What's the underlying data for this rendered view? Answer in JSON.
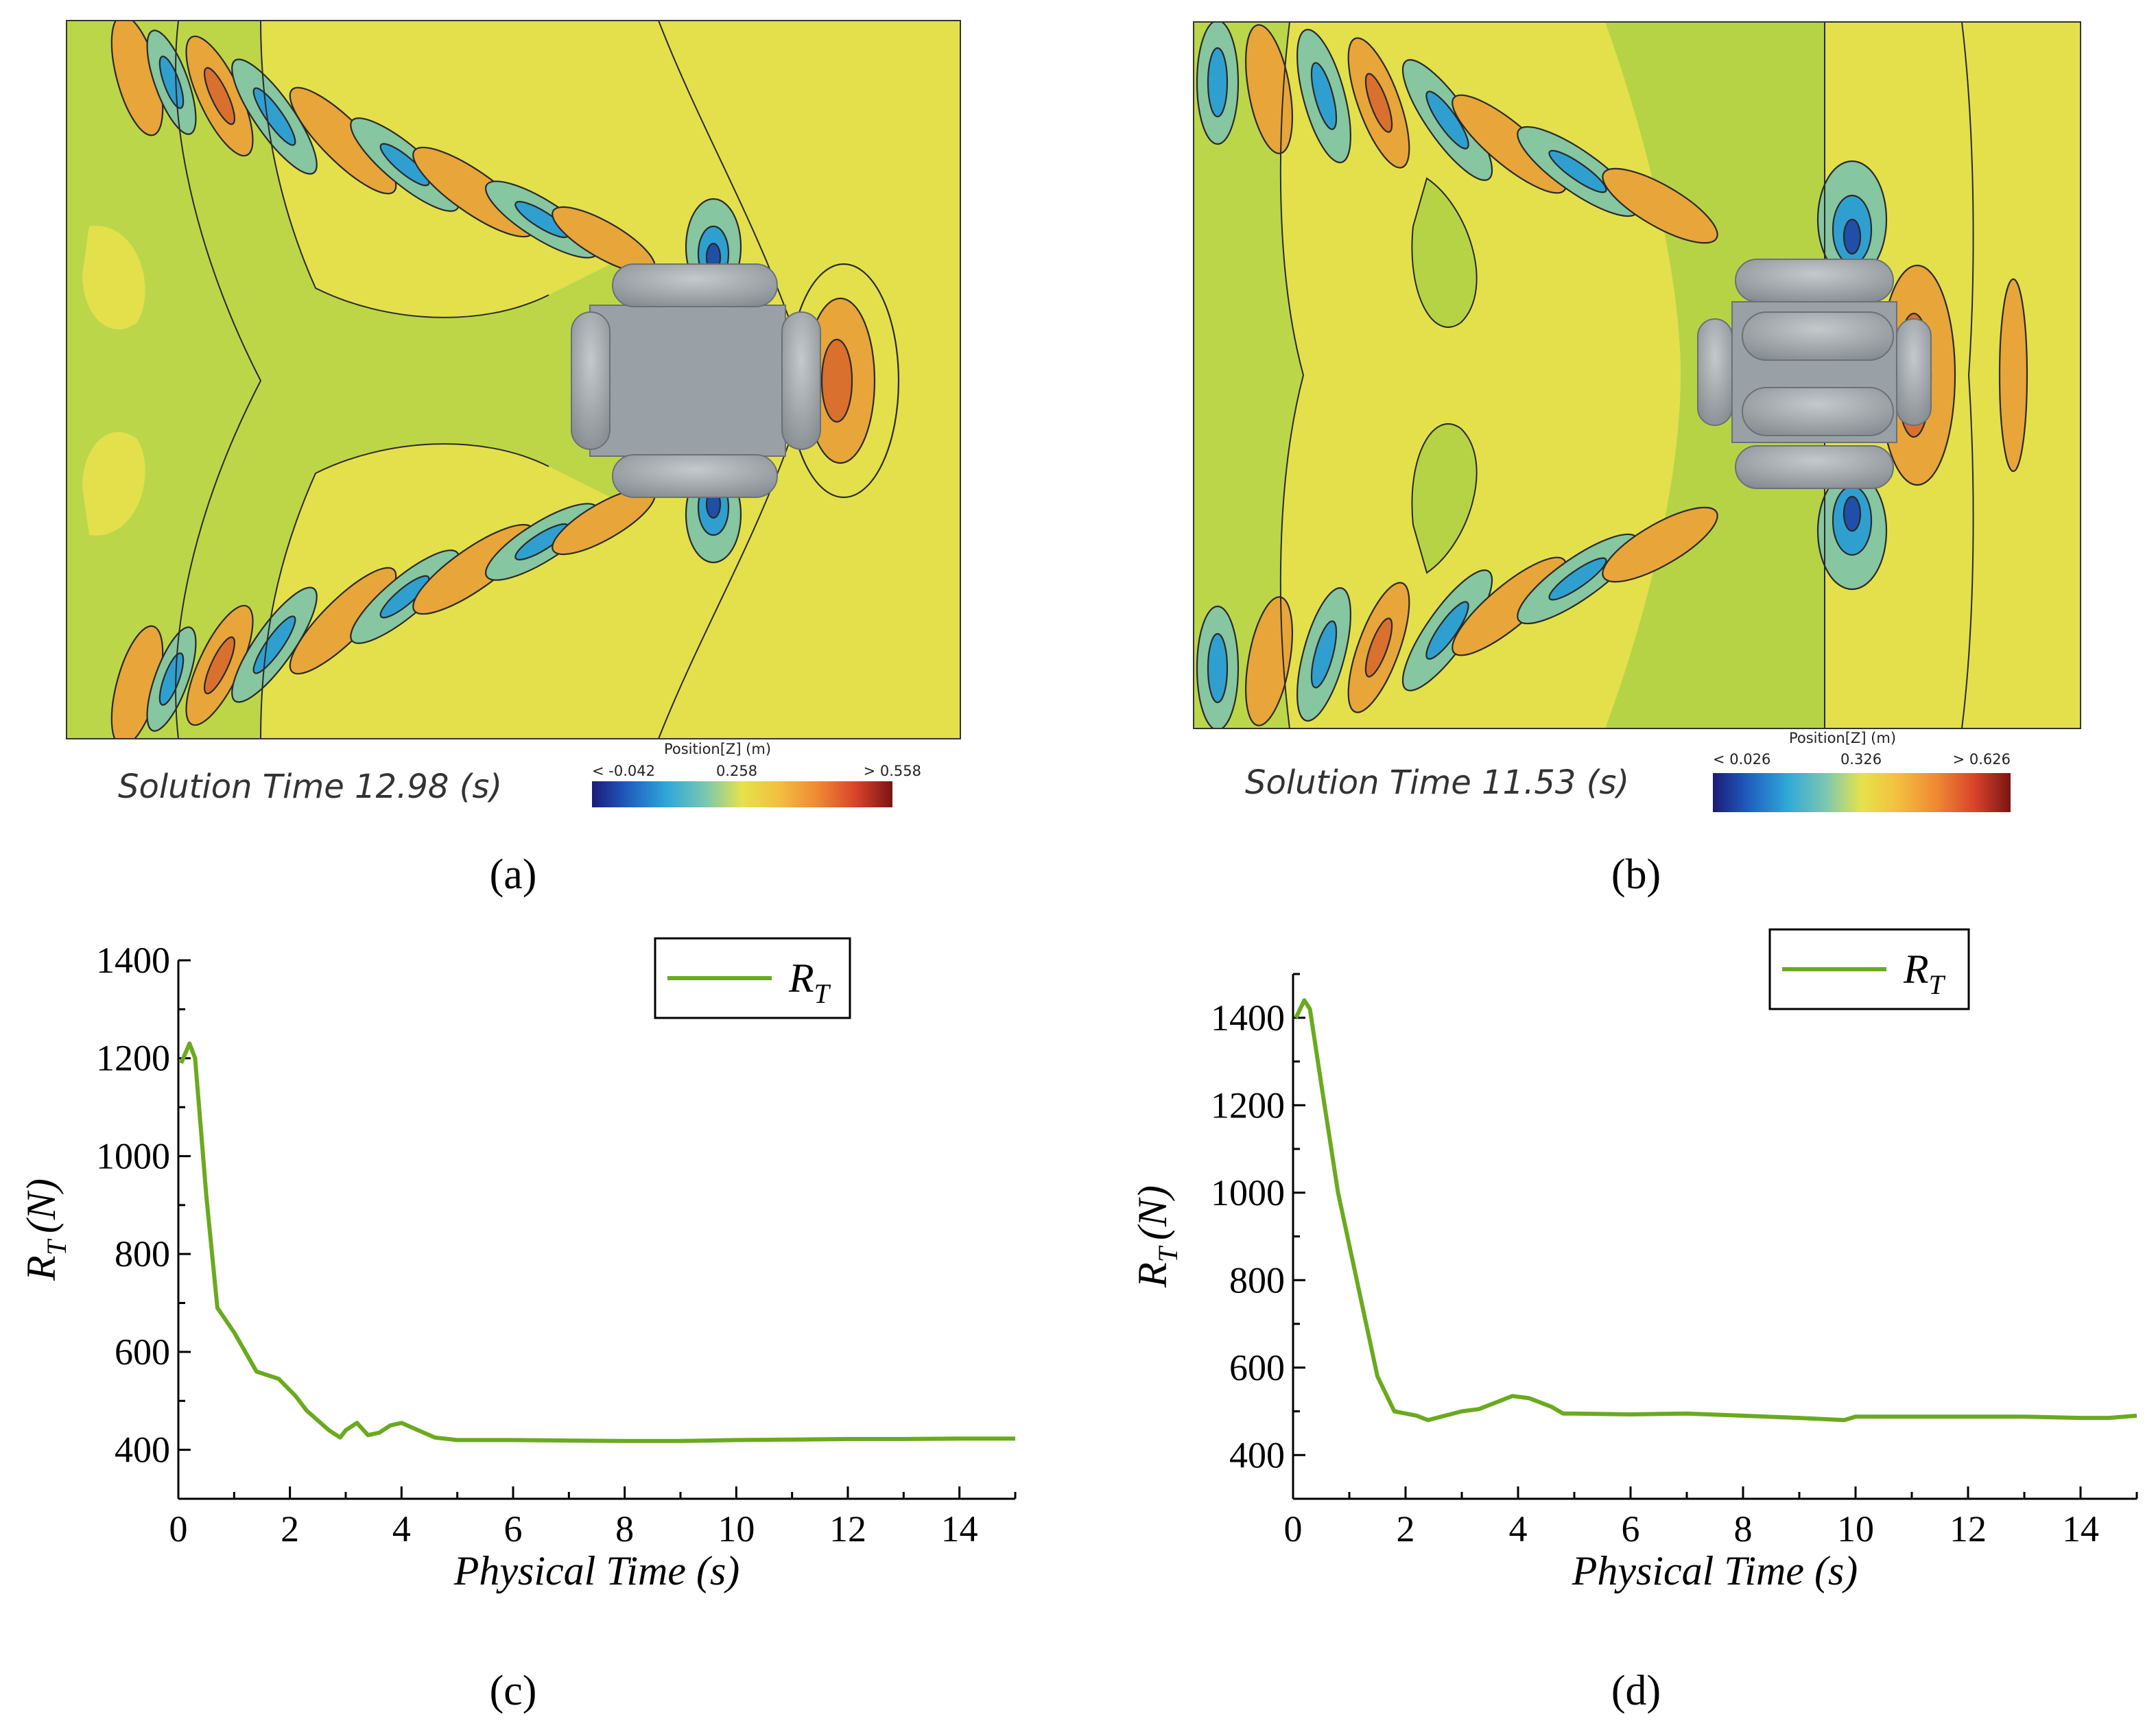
{
  "panels": {
    "a": {
      "label": "(a)",
      "solution_time_label": "Solution Time 12.98 (s)",
      "colorbar": {
        "title": "Position[Z] (m)",
        "min_label": "< -0.042",
        "mid_label": "0.258",
        "max_label": "> 0.558"
      }
    },
    "b": {
      "label": "(b)",
      "solution_time_label": "Solution Time 11.53 (s)",
      "colorbar": {
        "title": "Position[Z] (m)",
        "min_label": "< 0.026",
        "mid_label": "0.326",
        "max_label": "> 0.626"
      }
    },
    "c": {
      "label": "(c)"
    },
    "d": {
      "label": "(d)"
    }
  },
  "colors": {
    "curve": "#6aaa1e",
    "field_green": "#b6d346",
    "field_yellow": "#e3e04c",
    "wave_orange": "#e7a53a",
    "wave_blue": "#2f9fd0",
    "hull_gray": "#9aa1a6"
  },
  "chart_data": [
    {
      "type": "line",
      "panel": "c",
      "title": "",
      "xlabel": "Physical Time (s)",
      "ylabel": "R_T (N)",
      "ylabel_main": "R",
      "ylabel_sub": "T",
      "ylabel_unit": "(N)",
      "xlim": [
        0,
        15
      ],
      "ylim": [
        300,
        1400
      ],
      "xticks": [
        0,
        2,
        4,
        6,
        8,
        10,
        12,
        14
      ],
      "yticks": [
        400,
        600,
        800,
        1000,
        1200,
        1400
      ],
      "legend": {
        "main": "R",
        "sub": "T",
        "position": "top-right"
      },
      "series": [
        {
          "name": "R_T",
          "x": [
            0.05,
            0.2,
            0.3,
            0.5,
            0.7,
            1.0,
            1.2,
            1.4,
            1.8,
            2.1,
            2.3,
            2.5,
            2.7,
            2.9,
            3.0,
            3.2,
            3.4,
            3.6,
            3.8,
            4.0,
            4.3,
            4.6,
            5.0,
            6.0,
            7.0,
            8.0,
            9.0,
            10.0,
            11.0,
            12.0,
            13.0,
            14.0,
            15.0
          ],
          "y": [
            1190,
            1230,
            1200,
            920,
            690,
            640,
            600,
            560,
            545,
            510,
            480,
            460,
            440,
            425,
            440,
            455,
            430,
            435,
            450,
            455,
            440,
            425,
            420,
            420,
            419,
            418,
            418,
            420,
            421,
            422,
            422,
            423,
            423
          ]
        }
      ]
    },
    {
      "type": "line",
      "panel": "d",
      "title": "",
      "xlabel": "Physical Time (s)",
      "ylabel": "R_T (N)",
      "ylabel_main": "R",
      "ylabel_sub": "T",
      "ylabel_unit": "(N)",
      "xlim": [
        0,
        15
      ],
      "ylim": [
        300,
        1500
      ],
      "xticks": [
        0,
        2,
        4,
        6,
        8,
        10,
        12,
        14
      ],
      "yticks": [
        400,
        600,
        800,
        1000,
        1200,
        1400
      ],
      "legend": {
        "main": "R",
        "sub": "T",
        "position": "top-right"
      },
      "series": [
        {
          "name": "R_T",
          "x": [
            0.05,
            0.2,
            0.3,
            0.5,
            0.8,
            1.2,
            1.5,
            1.8,
            2.0,
            2.2,
            2.4,
            2.7,
            3.0,
            3.3,
            3.6,
            3.9,
            4.2,
            4.6,
            4.8,
            5.0,
            6.0,
            7.0,
            8.0,
            9.0,
            9.8,
            10.0,
            11.0,
            12.0,
            13.0,
            14.0,
            14.5,
            15.0
          ],
          "y": [
            1400,
            1440,
            1420,
            1250,
            1000,
            760,
            580,
            500,
            495,
            490,
            480,
            490,
            500,
            505,
            520,
            535,
            530,
            510,
            495,
            495,
            493,
            495,
            490,
            485,
            480,
            488,
            488,
            488,
            488,
            485,
            485,
            490
          ]
        }
      ]
    }
  ]
}
